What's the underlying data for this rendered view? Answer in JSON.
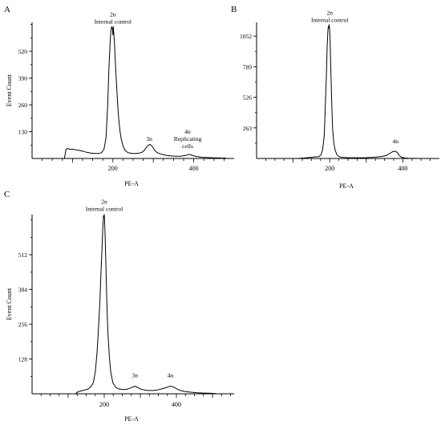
{
  "figure": {
    "panels": [
      {
        "letter": "A"
      },
      {
        "letter": "B"
      },
      {
        "letter": "C"
      }
    ]
  },
  "chart_data": [
    {
      "panel": "A",
      "type": "line",
      "xlabel": "PE-A",
      "ylabel": "Event Count",
      "xlim": [
        0,
        500
      ],
      "ylim": [
        0,
        660
      ],
      "xticks": [
        200,
        400
      ],
      "yticks": [
        130,
        260,
        390,
        520
      ],
      "annotations": [
        {
          "lines": [
            "2n",
            "Internal control"
          ],
          "x": 200,
          "y": 690
        },
        {
          "lines": [
            "3n"
          ],
          "x": 290,
          "y": 85
        },
        {
          "lines": [
            "4n",
            "Replicating",
            "cells"
          ],
          "x": 385,
          "y": 120
        }
      ],
      "x": [
        80,
        82,
        84,
        88,
        95,
        100,
        108,
        115,
        125,
        135,
        145,
        155,
        165,
        172,
        178,
        183,
        187,
        190,
        193,
        195,
        197,
        199,
        200,
        201,
        202,
        203,
        204,
        205,
        206,
        208,
        210,
        212,
        214,
        217,
        220,
        225,
        230,
        236,
        242,
        250,
        258,
        265,
        272,
        278,
        284,
        288,
        292,
        296,
        300,
        305,
        310,
        318,
        326,
        335,
        345,
        355,
        365,
        372,
        378,
        383,
        388,
        393,
        398,
        405,
        412,
        420,
        430,
        440,
        450,
        460,
        470,
        480
      ],
      "y": [
        0,
        20,
        45,
        48,
        44,
        46,
        42,
        40,
        36,
        30,
        26,
        25,
        24,
        28,
        45,
        100,
        250,
        430,
        560,
        620,
        640,
        628,
        600,
        640,
        610,
        585,
        560,
        510,
        470,
        400,
        330,
        260,
        200,
        140,
        100,
        60,
        40,
        30,
        26,
        24,
        24,
        26,
        30,
        40,
        58,
        65,
        68,
        62,
        50,
        36,
        28,
        22,
        18,
        14,
        12,
        11,
        11,
        12,
        14,
        16,
        20,
        18,
        14,
        10,
        8,
        6,
        5,
        4,
        3,
        3,
        2,
        2
      ]
    },
    {
      "panel": "B",
      "type": "line",
      "xlabel": "PE-A",
      "ylabel": "",
      "xlim": [
        0,
        500
      ],
      "ylim": [
        0,
        1170
      ],
      "xticks": [
        200,
        400
      ],
      "yticks": [
        263,
        526,
        789,
        1052
      ],
      "annotations": [
        {
          "lines": [
            "2n",
            "Internal control"
          ],
          "x": 200,
          "y": 1235
        },
        {
          "lines": [
            "4n"
          ],
          "x": 380,
          "y": 130
        }
      ],
      "x": [
        110,
        130,
        145,
        155,
        163,
        170,
        176,
        181,
        185,
        188,
        191,
        193,
        195,
        196,
        197,
        198,
        199,
        200,
        201,
        202,
        204,
        206,
        208,
        211,
        215,
        220,
        226,
        233,
        240,
        250,
        260,
        280,
        300,
        320,
        340,
        355,
        365,
        372,
        377,
        381,
        385,
        389,
        393,
        398,
        405,
        415,
        430,
        450,
        470,
        490
      ],
      "y": [
        0,
        4,
        8,
        12,
        14,
        16,
        30,
        80,
        200,
        450,
        720,
        960,
        1090,
        1130,
        1120,
        1150,
        1140,
        1100,
        1010,
        900,
        660,
        430,
        260,
        140,
        70,
        32,
        16,
        10,
        8,
        6,
        6,
        6,
        7,
        10,
        16,
        26,
        45,
        58,
        62,
        60,
        50,
        32,
        18,
        8,
        4,
        2,
        1,
        0,
        0,
        0
      ]
    },
    {
      "panel": "C",
      "type": "line",
      "xlabel": "PE-A",
      "ylabel": "Event Count",
      "xlim": [
        0,
        560
      ],
      "ylim": [
        0,
        660
      ],
      "xticks": [
        200,
        400
      ],
      "yticks": [
        128,
        256,
        384,
        512
      ],
      "annotations": [
        {
          "lines": [
            "2n",
            "Internal control"
          ],
          "x": 200,
          "y": 700
        },
        {
          "lines": [
            "3n"
          ],
          "x": 285,
          "y": 60
        },
        {
          "lines": [
            "4n"
          ],
          "x": 383,
          "y": 60
        }
      ],
      "x": [
        120,
        128,
        134,
        140,
        146,
        152,
        158,
        164,
        170,
        175,
        180,
        184,
        188,
        191,
        194,
        196,
        198,
        199,
        200,
        201,
        202,
        203,
        205,
        207,
        210,
        214,
        218,
        224,
        232,
        240,
        250,
        260,
        270,
        278,
        285,
        292,
        300,
        310,
        322,
        335,
        348,
        360,
        370,
        378,
        384,
        390,
        396,
        404,
        414,
        425,
        440,
        455,
        470,
        490,
        510
      ],
      "y": [
        0,
        8,
        10,
        12,
        14,
        16,
        20,
        28,
        42,
        80,
        150,
        240,
        340,
        450,
        540,
        610,
        655,
        650,
        660,
        640,
        600,
        560,
        450,
        340,
        230,
        140,
        80,
        40,
        24,
        18,
        16,
        16,
        20,
        24,
        28,
        24,
        18,
        14,
        12,
        12,
        14,
        18,
        22,
        26,
        28,
        26,
        22,
        16,
        11,
        8,
        6,
        4,
        3,
        2,
        1
      ]
    }
  ]
}
